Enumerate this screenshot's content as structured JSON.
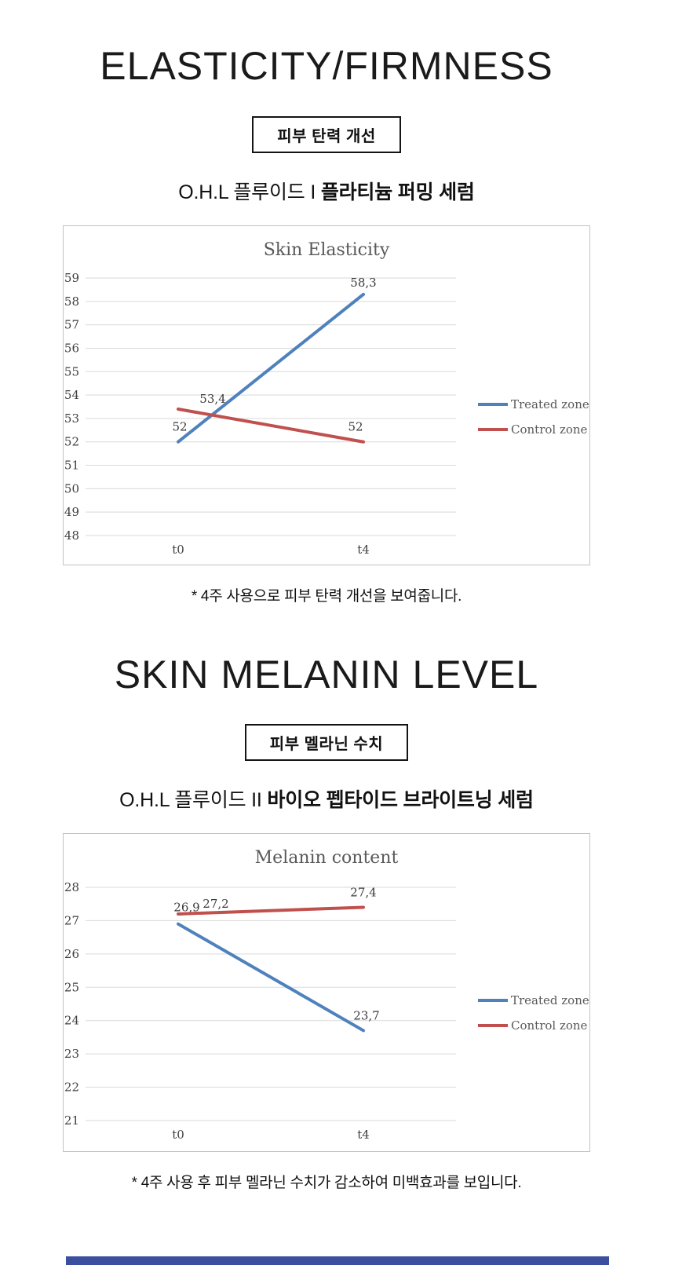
{
  "sections": [
    {
      "title": "ELASTICITY/FIRMNESS",
      "badge": "피부 탄력 개선",
      "subtitle_normal": "O.H.L 플루이드 I ",
      "subtitle_bold": "플라티늄 퍼밍 세럼",
      "caption": "* 4주 사용으로  피부 탄력 개선을 보여줍니다."
    },
    {
      "title": "SKIN MELANIN LEVEL",
      "badge": "피부 멜라닌 수치",
      "subtitle_normal": "O.H.L 플루이드 II ",
      "subtitle_bold": "바이오 펩타이드 브라이트닝 세럼",
      "caption": "* 4주 사용 후 피부 멜라닌 수치가 감소하여 미백효과를 보입니다."
    }
  ],
  "chart_data": [
    {
      "type": "line",
      "title": "Skin Elasticity",
      "categories": [
        "t0",
        "t4"
      ],
      "series": [
        {
          "name": "Treated zone",
          "color": "#4f81bd",
          "values": [
            52,
            58.3
          ],
          "labels": [
            "52",
            "58,3"
          ]
        },
        {
          "name": "Control zone",
          "color": "#c0504d",
          "values": [
            53.4,
            52
          ],
          "labels": [
            "53,4",
            "52"
          ]
        }
      ],
      "xlabel": "",
      "ylabel": "",
      "ylim": [
        48,
        59
      ],
      "ytick_step": 1,
      "grid": true,
      "legend_position": "right"
    },
    {
      "type": "line",
      "title": "Melanin content",
      "categories": [
        "t0",
        "t4"
      ],
      "series": [
        {
          "name": "Treated zone",
          "color": "#4f81bd",
          "values": [
            26.9,
            23.7
          ],
          "labels": [
            "26,9",
            "23,7"
          ]
        },
        {
          "name": "Control zone",
          "color": "#c0504d",
          "values": [
            27.2,
            27.4
          ],
          "labels": [
            "27,2",
            "27,4"
          ]
        }
      ],
      "xlabel": "",
      "ylabel": "",
      "ylim": [
        21,
        28
      ],
      "ytick_step": 1,
      "grid": true,
      "legend_position": "right"
    }
  ],
  "colors": {
    "treated_zone": "#4f81bd",
    "control_zone": "#c0504d",
    "gridline": "#d9d9d9",
    "chart_text": "#595959",
    "bottom_strip": "#3b4fa0"
  }
}
